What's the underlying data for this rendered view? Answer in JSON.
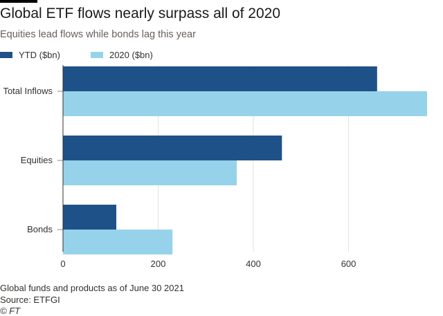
{
  "chart_data": {
    "type": "bar",
    "orientation": "horizontal",
    "title": "Global ETF flows nearly surpass all of 2020",
    "subtitle": "Equities lead flows while bonds lag this year",
    "categories": [
      "Total Inflows",
      "Equities",
      "Bonds"
    ],
    "series": [
      {
        "name": "YTD ($bn)",
        "color": "#1f5189",
        "values": [
          660,
          460,
          112
        ]
      },
      {
        "name": "2020 ($bn)",
        "color": "#96d3ea",
        "values": [
          765,
          365,
          230
        ]
      }
    ],
    "xlim": [
      0,
      765
    ],
    "xticks": [
      0,
      200,
      400,
      600
    ],
    "grid": true,
    "legend_position": "top-left",
    "notes": "Global funds and products as of June 30 2021",
    "source": "Source: ETFGI",
    "credit": "© FT"
  }
}
